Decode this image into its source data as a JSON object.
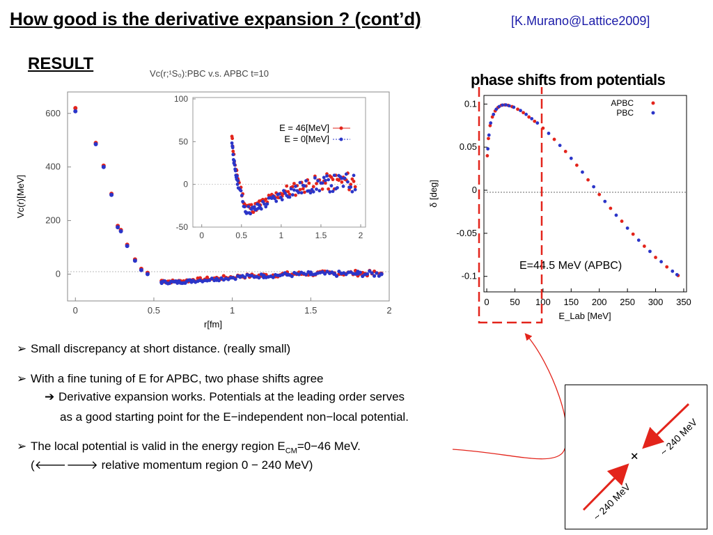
{
  "slide": {
    "title": "How good is the derivative expansion ? (cont’d)",
    "reference": "[K.Murano@Lattice2009]",
    "result_label": "RESULT"
  },
  "left_plot": {
    "title": "Vc(r;¹S₀):PBC v.s. APBC t=10",
    "xlabel": "r[fm]",
    "ylabel": "Vc(r)[MeV]",
    "xticks": [
      "0",
      "0.5",
      "1",
      "1.5",
      "2"
    ],
    "yticks": [
      "0",
      "200",
      "400",
      "600"
    ],
    "inset": {
      "xticks": [
        "0",
        "0.5",
        "1",
        "1.5",
        "2"
      ],
      "yticks": [
        "-50",
        "0",
        "50",
        "100"
      ],
      "legend": [
        "E = 46[MeV]",
        "E = 0[MeV]"
      ]
    }
  },
  "right_plot": {
    "title": "phase shifts from potentials",
    "xlabel": "E_Lab [MeV]",
    "ylabel": "δ [deg]",
    "xticks": [
      "0",
      "50",
      "100",
      "150",
      "200",
      "250",
      "300",
      "350"
    ],
    "yticks": [
      "0.1",
      "0.05",
      "0",
      "-0.05",
      "-0.1"
    ],
    "legend": [
      "APBC",
      "PBC"
    ],
    "annotation": "E=44.5 MeV (APBC)"
  },
  "bullets": [
    {
      "marker": "➢",
      "text": "Small discrepancy at short distance. (really small)"
    },
    {
      "marker": "➢",
      "text": "With a fine tuning of E for APBC, two phase shifts agree"
    },
    {
      "marker": "➔",
      "text": "Derivative expansion works. Potentials at the leading order serves"
    },
    {
      "marker": "",
      "text": "as a good starting point for the E−independent non−local potential."
    },
    {
      "marker": "➢",
      "text_pre": "The local potential is valid in the energy region E",
      "text_sub": "CM",
      "text_post": "=0−46 MeV."
    },
    {
      "marker": "(",
      "text_arrows": "🡐🡒",
      "text": "relative momentum region 0 − 240 MeV)"
    }
  ],
  "diagram": {
    "label_top": "~ 240 MeV",
    "label_bottom": "~ 240 MeV",
    "center": "+"
  },
  "colors": {
    "red": "#e3241b",
    "blue": "#2b35c8",
    "ref_blue": "#1a1aa8"
  },
  "chart_data": [
    {
      "type": "scatter",
      "title": "Vc(r;¹S₀):PBC v.s. APBC t=10",
      "xlabel": "r[fm]",
      "ylabel": "Vc(r)[MeV]",
      "xlim": [
        -0.05,
        2.0
      ],
      "ylim": [
        -100,
        680
      ],
      "series": [
        {
          "name": "E = 46[MeV]",
          "color": "#e3241b",
          "points": [
            [
              0,
              620
            ],
            [
              0.13,
              490
            ],
            [
              0.18,
              405
            ],
            [
              0.23,
              300
            ],
            [
              0.27,
              180
            ],
            [
              0.29,
              165
            ],
            [
              0.33,
              110
            ],
            [
              0.38,
              55
            ],
            [
              0.42,
              20
            ],
            [
              0.46,
              5
            ],
            [
              0.55,
              -25
            ],
            [
              0.65,
              -28
            ],
            [
              0.75,
              -22
            ],
            [
              0.9,
              -15
            ],
            [
              1.05,
              -8
            ],
            [
              1.2,
              -5
            ],
            [
              1.35,
              0
            ],
            [
              1.5,
              2
            ],
            [
              1.65,
              3
            ],
            [
              1.8,
              4
            ],
            [
              1.95,
              2
            ]
          ]
        },
        {
          "name": "E = 0[MeV]",
          "color": "#2b35c8",
          "points": [
            [
              0,
              608
            ],
            [
              0.13,
              485
            ],
            [
              0.18,
              400
            ],
            [
              0.23,
              296
            ],
            [
              0.27,
              175
            ],
            [
              0.29,
              160
            ],
            [
              0.33,
              105
            ],
            [
              0.38,
              50
            ],
            [
              0.42,
              15
            ],
            [
              0.46,
              0
            ],
            [
              0.55,
              -30
            ],
            [
              0.65,
              -30
            ],
            [
              0.75,
              -25
            ],
            [
              0.9,
              -18
            ],
            [
              1.05,
              -10
            ],
            [
              1.2,
              -6
            ],
            [
              1.35,
              -2
            ],
            [
              1.5,
              0
            ],
            [
              1.65,
              1
            ],
            [
              1.8,
              2
            ],
            [
              1.95,
              0
            ]
          ]
        }
      ]
    },
    {
      "type": "line",
      "title": "phase shifts from potentials",
      "xlabel": "E_Lab [MeV]",
      "ylabel": "δ [deg]",
      "xlim": [
        -5,
        355
      ],
      "ylim": [
        -0.118,
        0.11
      ],
      "legend_position": "top-right",
      "series": [
        {
          "name": "APBC",
          "color": "#e3241b",
          "x": [
            1,
            3,
            6,
            10,
            15,
            20,
            26,
            32,
            38,
            45,
            55,
            65,
            75,
            85,
            100,
            120,
            140,
            160,
            180,
            200,
            220,
            240,
            260,
            280,
            300,
            320,
            340
          ],
          "y": [
            0.04,
            0.06,
            0.075,
            0.085,
            0.092,
            0.096,
            0.0985,
            0.099,
            0.0985,
            0.097,
            0.094,
            0.09,
            0.085,
            0.08,
            0.072,
            0.059,
            0.045,
            0.029,
            0.012,
            -0.005,
            -0.021,
            -0.036,
            -0.051,
            -0.065,
            -0.078,
            -0.089,
            -0.099
          ]
        },
        {
          "name": "PBC",
          "color": "#2b35c8",
          "x": [
            2,
            4,
            7,
            12,
            17,
            22,
            28,
            34,
            40,
            48,
            60,
            70,
            80,
            90,
            110,
            130,
            150,
            170,
            190,
            210,
            230,
            250,
            270,
            290,
            310,
            330,
            338
          ],
          "y": [
            0.048,
            0.064,
            0.078,
            0.088,
            0.094,
            0.097,
            0.0988,
            0.099,
            0.098,
            0.0963,
            0.0925,
            0.088,
            0.083,
            0.078,
            0.066,
            0.052,
            0.037,
            0.021,
            0.004,
            -0.013,
            -0.029,
            -0.044,
            -0.058,
            -0.071,
            -0.083,
            -0.094,
            -0.098
          ]
        }
      ]
    }
  ]
}
